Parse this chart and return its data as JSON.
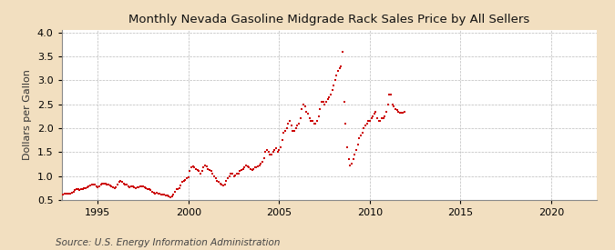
{
  "title": "Monthly Nevada Gasoline Midgrade Rack Sales Price by All Sellers",
  "ylabel": "Dollars per Gallon",
  "source": "Source: U.S. Energy Information Administration",
  "xlim": [
    1993.0,
    2022.5
  ],
  "ylim": [
    0.5,
    4.05
  ],
  "yticks": [
    0.5,
    1.0,
    1.5,
    2.0,
    2.5,
    3.0,
    3.5,
    4.0
  ],
  "xticks": [
    1995,
    2000,
    2005,
    2010,
    2015,
    2020
  ],
  "marker_color": "#cc0000",
  "bg_color": "#f2dfc0",
  "plot_bg_color": "#ffffff",
  "grid_color": "#bbbbbb",
  "title_fontsize": 9.5,
  "label_fontsize": 8,
  "tick_fontsize": 8,
  "source_fontsize": 7.5,
  "data": [
    [
      1993.08,
      0.62
    ],
    [
      1993.17,
      0.63
    ],
    [
      1993.25,
      0.63
    ],
    [
      1993.33,
      0.63
    ],
    [
      1993.42,
      0.63
    ],
    [
      1993.5,
      0.64
    ],
    [
      1993.58,
      0.65
    ],
    [
      1993.67,
      0.68
    ],
    [
      1993.75,
      0.7
    ],
    [
      1993.83,
      0.72
    ],
    [
      1993.92,
      0.72
    ],
    [
      1994.0,
      0.71
    ],
    [
      1994.08,
      0.72
    ],
    [
      1994.17,
      0.73
    ],
    [
      1994.25,
      0.74
    ],
    [
      1994.33,
      0.75
    ],
    [
      1994.42,
      0.76
    ],
    [
      1994.5,
      0.78
    ],
    [
      1994.58,
      0.8
    ],
    [
      1994.67,
      0.82
    ],
    [
      1994.75,
      0.83
    ],
    [
      1994.83,
      0.82
    ],
    [
      1994.92,
      0.78
    ],
    [
      1995.0,
      0.77
    ],
    [
      1995.08,
      0.79
    ],
    [
      1995.17,
      0.82
    ],
    [
      1995.25,
      0.84
    ],
    [
      1995.33,
      0.85
    ],
    [
      1995.42,
      0.84
    ],
    [
      1995.5,
      0.83
    ],
    [
      1995.58,
      0.82
    ],
    [
      1995.67,
      0.8
    ],
    [
      1995.75,
      0.78
    ],
    [
      1995.83,
      0.77
    ],
    [
      1995.92,
      0.75
    ],
    [
      1996.0,
      0.77
    ],
    [
      1996.08,
      0.82
    ],
    [
      1996.17,
      0.88
    ],
    [
      1996.25,
      0.9
    ],
    [
      1996.33,
      0.88
    ],
    [
      1996.42,
      0.85
    ],
    [
      1996.5,
      0.83
    ],
    [
      1996.58,
      0.82
    ],
    [
      1996.67,
      0.78
    ],
    [
      1996.75,
      0.77
    ],
    [
      1996.83,
      0.79
    ],
    [
      1996.92,
      0.78
    ],
    [
      1997.0,
      0.77
    ],
    [
      1997.08,
      0.75
    ],
    [
      1997.17,
      0.76
    ],
    [
      1997.25,
      0.77
    ],
    [
      1997.33,
      0.78
    ],
    [
      1997.42,
      0.78
    ],
    [
      1997.5,
      0.78
    ],
    [
      1997.58,
      0.77
    ],
    [
      1997.67,
      0.75
    ],
    [
      1997.75,
      0.73
    ],
    [
      1997.83,
      0.72
    ],
    [
      1997.92,
      0.71
    ],
    [
      1998.0,
      0.68
    ],
    [
      1998.08,
      0.65
    ],
    [
      1998.17,
      0.64
    ],
    [
      1998.25,
      0.65
    ],
    [
      1998.33,
      0.64
    ],
    [
      1998.42,
      0.63
    ],
    [
      1998.5,
      0.62
    ],
    [
      1998.58,
      0.62
    ],
    [
      1998.67,
      0.61
    ],
    [
      1998.75,
      0.6
    ],
    [
      1998.83,
      0.59
    ],
    [
      1998.92,
      0.58
    ],
    [
      1999.0,
      0.56
    ],
    [
      1999.08,
      0.57
    ],
    [
      1999.17,
      0.62
    ],
    [
      1999.25,
      0.68
    ],
    [
      1999.33,
      0.72
    ],
    [
      1999.42,
      0.73
    ],
    [
      1999.5,
      0.74
    ],
    [
      1999.58,
      0.8
    ],
    [
      1999.67,
      0.88
    ],
    [
      1999.75,
      0.9
    ],
    [
      1999.83,
      0.92
    ],
    [
      1999.92,
      0.95
    ],
    [
      2000.0,
      0.98
    ],
    [
      2000.08,
      1.1
    ],
    [
      2000.17,
      1.18
    ],
    [
      2000.25,
      1.2
    ],
    [
      2000.33,
      1.18
    ],
    [
      2000.42,
      1.15
    ],
    [
      2000.5,
      1.13
    ],
    [
      2000.58,
      1.1
    ],
    [
      2000.67,
      1.05
    ],
    [
      2000.75,
      1.1
    ],
    [
      2000.83,
      1.18
    ],
    [
      2000.92,
      1.22
    ],
    [
      2001.0,
      1.2
    ],
    [
      2001.08,
      1.15
    ],
    [
      2001.17,
      1.12
    ],
    [
      2001.25,
      1.1
    ],
    [
      2001.33,
      1.05
    ],
    [
      2001.42,
      1.0
    ],
    [
      2001.5,
      0.95
    ],
    [
      2001.58,
      0.9
    ],
    [
      2001.67,
      0.88
    ],
    [
      2001.75,
      0.85
    ],
    [
      2001.83,
      0.82
    ],
    [
      2001.92,
      0.8
    ],
    [
      2002.0,
      0.82
    ],
    [
      2002.08,
      0.9
    ],
    [
      2002.17,
      0.95
    ],
    [
      2002.25,
      1.0
    ],
    [
      2002.33,
      1.05
    ],
    [
      2002.42,
      1.05
    ],
    [
      2002.5,
      1.0
    ],
    [
      2002.58,
      1.02
    ],
    [
      2002.67,
      1.05
    ],
    [
      2002.75,
      1.05
    ],
    [
      2002.83,
      1.1
    ],
    [
      2002.92,
      1.12
    ],
    [
      2003.0,
      1.15
    ],
    [
      2003.08,
      1.18
    ],
    [
      2003.17,
      1.22
    ],
    [
      2003.25,
      1.2
    ],
    [
      2003.33,
      1.18
    ],
    [
      2003.42,
      1.15
    ],
    [
      2003.5,
      1.12
    ],
    [
      2003.58,
      1.15
    ],
    [
      2003.67,
      1.18
    ],
    [
      2003.75,
      1.18
    ],
    [
      2003.83,
      1.2
    ],
    [
      2003.92,
      1.22
    ],
    [
      2004.0,
      1.25
    ],
    [
      2004.08,
      1.3
    ],
    [
      2004.17,
      1.38
    ],
    [
      2004.25,
      1.5
    ],
    [
      2004.33,
      1.55
    ],
    [
      2004.42,
      1.5
    ],
    [
      2004.5,
      1.45
    ],
    [
      2004.58,
      1.45
    ],
    [
      2004.67,
      1.5
    ],
    [
      2004.75,
      1.55
    ],
    [
      2004.83,
      1.58
    ],
    [
      2004.92,
      1.5
    ],
    [
      2005.0,
      1.55
    ],
    [
      2005.08,
      1.6
    ],
    [
      2005.17,
      1.75
    ],
    [
      2005.25,
      1.9
    ],
    [
      2005.33,
      1.95
    ],
    [
      2005.42,
      2.0
    ],
    [
      2005.5,
      2.1
    ],
    [
      2005.58,
      2.15
    ],
    [
      2005.67,
      2.05
    ],
    [
      2005.75,
      1.95
    ],
    [
      2005.83,
      1.95
    ],
    [
      2005.92,
      2.0
    ],
    [
      2006.0,
      2.05
    ],
    [
      2006.08,
      2.1
    ],
    [
      2006.17,
      2.2
    ],
    [
      2006.25,
      2.4
    ],
    [
      2006.33,
      2.5
    ],
    [
      2006.42,
      2.45
    ],
    [
      2006.5,
      2.35
    ],
    [
      2006.58,
      2.3
    ],
    [
      2006.67,
      2.2
    ],
    [
      2006.75,
      2.15
    ],
    [
      2006.83,
      2.15
    ],
    [
      2006.92,
      2.1
    ],
    [
      2007.0,
      2.1
    ],
    [
      2007.08,
      2.15
    ],
    [
      2007.17,
      2.25
    ],
    [
      2007.25,
      2.4
    ],
    [
      2007.33,
      2.55
    ],
    [
      2007.42,
      2.55
    ],
    [
      2007.5,
      2.5
    ],
    [
      2007.58,
      2.55
    ],
    [
      2007.67,
      2.6
    ],
    [
      2007.75,
      2.65
    ],
    [
      2007.83,
      2.7
    ],
    [
      2007.92,
      2.8
    ],
    [
      2008.0,
      2.9
    ],
    [
      2008.08,
      3.0
    ],
    [
      2008.17,
      3.1
    ],
    [
      2008.25,
      3.2
    ],
    [
      2008.33,
      3.25
    ],
    [
      2008.42,
      3.3
    ],
    [
      2008.5,
      3.6
    ],
    [
      2008.58,
      2.55
    ],
    [
      2008.67,
      2.1
    ],
    [
      2008.75,
      1.6
    ],
    [
      2008.83,
      1.35
    ],
    [
      2008.92,
      1.22
    ],
    [
      2009.0,
      1.25
    ],
    [
      2009.08,
      1.35
    ],
    [
      2009.17,
      1.45
    ],
    [
      2009.25,
      1.55
    ],
    [
      2009.33,
      1.65
    ],
    [
      2009.42,
      1.8
    ],
    [
      2009.5,
      1.85
    ],
    [
      2009.58,
      1.9
    ],
    [
      2009.67,
      2.0
    ],
    [
      2009.75,
      2.05
    ],
    [
      2009.83,
      2.1
    ],
    [
      2009.92,
      2.15
    ],
    [
      2010.0,
      2.15
    ],
    [
      2010.08,
      2.2
    ],
    [
      2010.17,
      2.25
    ],
    [
      2010.25,
      2.3
    ],
    [
      2010.33,
      2.35
    ],
    [
      2010.42,
      2.2
    ],
    [
      2010.5,
      2.15
    ],
    [
      2010.58,
      2.15
    ],
    [
      2010.67,
      2.2
    ],
    [
      2010.75,
      2.2
    ],
    [
      2010.83,
      2.25
    ],
    [
      2010.92,
      2.35
    ],
    [
      2011.0,
      2.5
    ],
    [
      2011.08,
      2.7
    ],
    [
      2011.17,
      2.7
    ],
    [
      2011.25,
      2.5
    ],
    [
      2011.33,
      2.45
    ],
    [
      2011.42,
      2.4
    ],
    [
      2011.5,
      2.38
    ],
    [
      2011.58,
      2.35
    ],
    [
      2011.67,
      2.33
    ],
    [
      2011.75,
      2.32
    ],
    [
      2011.83,
      2.33
    ],
    [
      2011.92,
      2.35
    ]
  ]
}
